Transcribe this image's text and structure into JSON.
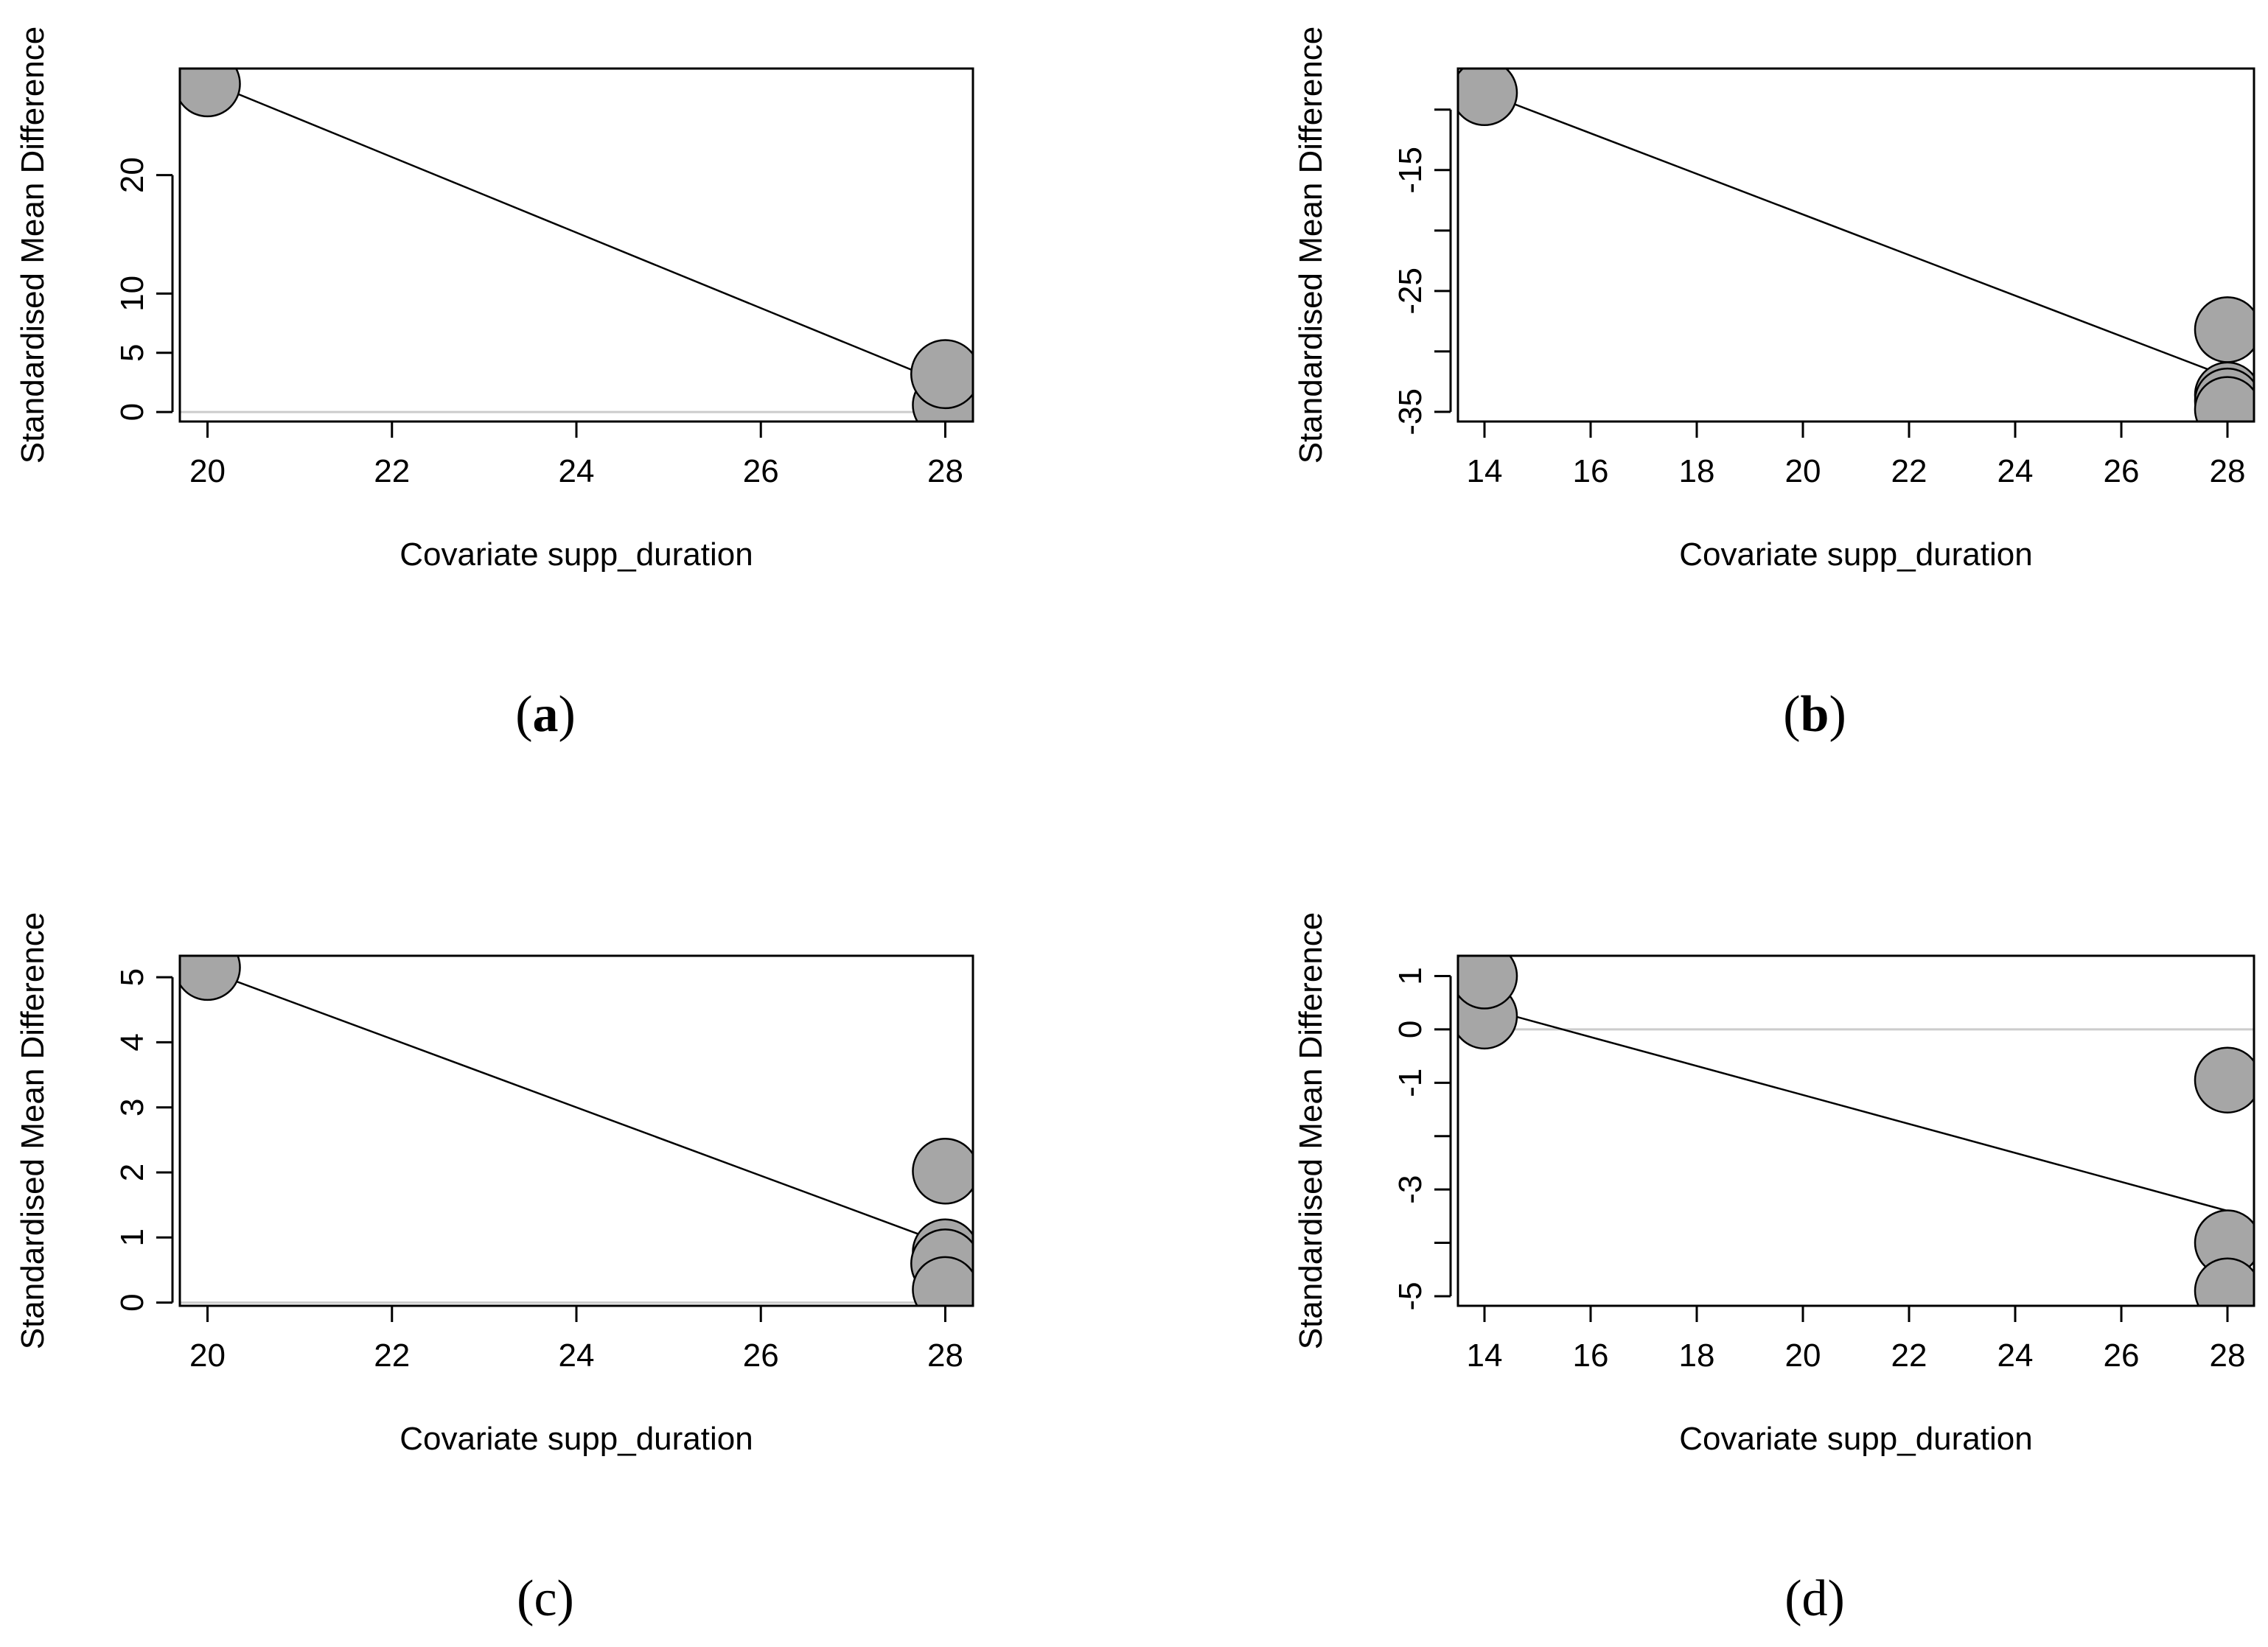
{
  "colors": {
    "point_fill": "#a6a6a6",
    "point_stroke": "#000000",
    "regression_line": "#000000",
    "zero_line": "#cccccc",
    "axis": "#000000"
  },
  "chart_data": [
    {
      "type": "scatter",
      "panel_label": "a",
      "label_bold": true,
      "xlabel": "Covariate supp_duration",
      "ylabel": "Standardised Mean Difference",
      "xlim": [
        19.7,
        28.3
      ],
      "ylim": [
        -0.8,
        29
      ],
      "xticks": [
        20,
        22,
        24,
        26,
        28
      ],
      "yticks": [
        0,
        5,
        10,
        20
      ],
      "zero_line": true,
      "points": [
        {
          "x": 20,
          "y": 27.7,
          "size": 1.0
        },
        {
          "x": 28,
          "y": 0.6,
          "size": 1.0
        },
        {
          "x": 28,
          "y": 3.2,
          "size": 1.05
        }
      ],
      "regression": [
        [
          20,
          27.9
        ],
        [
          28,
          2.4
        ]
      ]
    },
    {
      "type": "scatter",
      "panel_label": "b",
      "label_bold": true,
      "xlabel": "Covariate supp_duration",
      "ylabel": "Standardised Mean Difference",
      "xlim": [
        13.5,
        28.5
      ],
      "ylim": [
        -35.8,
        -6.6
      ],
      "xticks": [
        14,
        16,
        18,
        20,
        22,
        24,
        26,
        28
      ],
      "yticks": [
        -35,
        -30,
        -25,
        -20,
        -15,
        -10
      ],
      "ytick_labels": [
        "-35",
        "",
        "-25",
        "",
        "-15",
        ""
      ],
      "zero_line": false,
      "points": [
        {
          "x": 14,
          "y": -8.6,
          "size": 1.0
        },
        {
          "x": 28,
          "y": -28.2,
          "size": 1.0
        },
        {
          "x": 28,
          "y": -33.6,
          "size": 1.0
        },
        {
          "x": 28,
          "y": -34.1,
          "size": 1.0
        },
        {
          "x": 28,
          "y": -34.8,
          "size": 1.0
        }
      ],
      "regression": [
        [
          14,
          -8.6
        ],
        [
          28,
          -32.1
        ]
      ]
    },
    {
      "type": "scatter",
      "panel_label": "c",
      "label_bold": false,
      "xlabel": "Covariate supp_duration",
      "ylabel": "Standardised Mean Difference",
      "xlim": [
        19.7,
        28.3
      ],
      "ylim": [
        -0.05,
        5.33
      ],
      "xticks": [
        20,
        22,
        24,
        26,
        28
      ],
      "yticks": [
        0,
        1,
        2,
        3,
        4,
        5
      ],
      "zero_line": true,
      "points": [
        {
          "x": 20,
          "y": 5.15,
          "size": 1.0
        },
        {
          "x": 28,
          "y": 2.02,
          "size": 1.0
        },
        {
          "x": 28,
          "y": 0.78,
          "size": 1.0
        },
        {
          "x": 28,
          "y": 0.6,
          "size": 1.05
        },
        {
          "x": 28,
          "y": 0.2,
          "size": 1.0
        }
      ],
      "regression": [
        [
          20,
          5.1
        ],
        [
          28,
          0.9
        ]
      ]
    },
    {
      "type": "scatter",
      "panel_label": "d",
      "label_bold": false,
      "xlabel": "Covariate supp_duration",
      "ylabel": "Standardised Mean Difference",
      "xlim": [
        13.5,
        28.5
      ],
      "ylim": [
        -5.18,
        1.38
      ],
      "xticks": [
        14,
        16,
        18,
        20,
        22,
        24,
        26,
        28
      ],
      "yticks": [
        -5,
        -4,
        -3,
        -2,
        -1,
        0,
        1
      ],
      "ytick_labels": [
        "-5",
        "",
        "-3",
        "",
        "-1",
        "0",
        "1"
      ],
      "zero_line": true,
      "points": [
        {
          "x": 14,
          "y": 0.25,
          "size": 1.0
        },
        {
          "x": 14,
          "y": 1.0,
          "size": 1.0
        },
        {
          "x": 28,
          "y": -0.95,
          "size": 1.0
        },
        {
          "x": 28,
          "y": -4.0,
          "size": 1.0
        },
        {
          "x": 28,
          "y": -4.9,
          "size": 1.0
        }
      ],
      "regression": [
        [
          14,
          0.4
        ],
        [
          28,
          -3.4
        ]
      ]
    }
  ]
}
